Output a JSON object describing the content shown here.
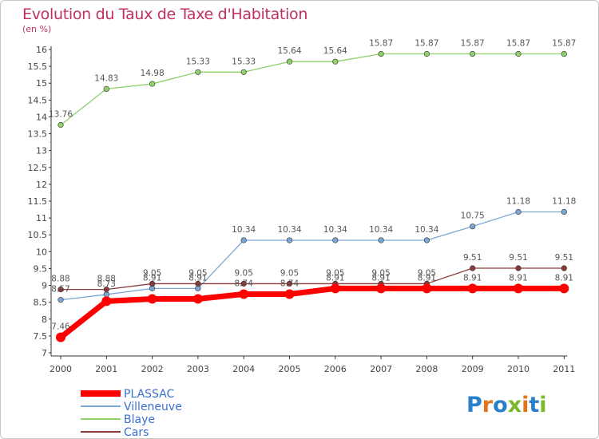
{
  "header": {
    "title": "Evolution du Taux de Taxe d'Habitation",
    "subtitle": "(en %)"
  },
  "logo": {
    "text": "Proxiti",
    "letters": [
      "P",
      "r",
      "o",
      "x",
      "i",
      "t",
      "i"
    ],
    "colors": [
      "#2a7fc9",
      "#e0751c",
      "#2a7fc9",
      "#7ab829",
      "#e0751c",
      "#2a7fc9",
      "#7ab829"
    ]
  },
  "chart_data": {
    "type": "line",
    "x": [
      "2000",
      "2001",
      "2002",
      "2003",
      "2004",
      "2005",
      "2006",
      "2007",
      "2008",
      "2009",
      "2010",
      "2011"
    ],
    "ylim": [
      7,
      16
    ],
    "yticks": [
      "7",
      "7.5",
      "8",
      "8.5",
      "9",
      "9.5",
      "10",
      "10.5",
      "11",
      "11.5",
      "12",
      "12.5",
      "13",
      "13.5",
      "14",
      "14.5",
      "15",
      "15.5",
      "16"
    ],
    "grid": false,
    "legend_position": "bottom-left",
    "series": [
      {
        "name": "PLASSAC",
        "color": "#ff0000",
        "values": [
          7.46,
          8.53,
          8.6,
          8.6,
          8.74,
          8.74,
          8.91,
          8.91,
          8.91,
          8.91,
          8.91,
          8.91
        ],
        "labels": [
          "7.46",
          "",
          "",
          "",
          "",
          "",
          "",
          "",
          "",
          "",
          "",
          ""
        ]
      },
      {
        "name": "Villeneuve",
        "color": "#7aa7d4",
        "values": [
          8.57,
          8.73,
          8.91,
          8.91,
          10.34,
          10.34,
          10.34,
          10.34,
          10.34,
          10.75,
          11.18,
          11.18
        ],
        "labels": [
          "8.57",
          "8.73",
          "8.91",
          "8.91",
          "10.34",
          "10.34",
          "10.34",
          "10.34",
          "10.34",
          "10.75",
          "11.18",
          "11.18"
        ]
      },
      {
        "name": "Blaye",
        "color": "#8ed16a",
        "values": [
          13.76,
          14.83,
          14.98,
          15.33,
          15.33,
          15.64,
          15.64,
          15.87,
          15.87,
          15.87,
          15.87,
          15.87
        ],
        "labels": [
          "13.76",
          "14.83",
          "14.98",
          "15.33",
          "15.33",
          "15.64",
          "15.64",
          "15.87",
          "15.87",
          "15.87",
          "15.87",
          "15.87"
        ]
      },
      {
        "name": "Cars",
        "color": "#8a3a3a",
        "values": [
          8.88,
          8.88,
          9.05,
          9.05,
          9.05,
          9.05,
          9.05,
          9.05,
          9.05,
          9.51,
          9.51,
          9.51
        ],
        "labels": [
          "8.88",
          "8.88",
          "9.05",
          "9.05",
          "9.05",
          "9.05",
          "9.05",
          "9.05",
          "9.05",
          "9.51",
          "9.51",
          "9.51"
        ]
      }
    ],
    "extra_labels": [
      {
        "text": "8.74",
        "x": "2004",
        "y": 8.74
      },
      {
        "text": "8.74",
        "x": "2005",
        "y": 8.74
      },
      {
        "text": "8.91",
        "x": "2006",
        "y": 8.91
      },
      {
        "text": "8.91",
        "x": "2007",
        "y": 8.91
      },
      {
        "text": "8.91",
        "x": "2008",
        "y": 8.91
      },
      {
        "text": "8.91",
        "x": "2009",
        "y": 8.91
      },
      {
        "text": "8.91",
        "x": "2010",
        "y": 8.91
      },
      {
        "text": "8.91",
        "x": "2011",
        "y": 8.91
      }
    ]
  }
}
